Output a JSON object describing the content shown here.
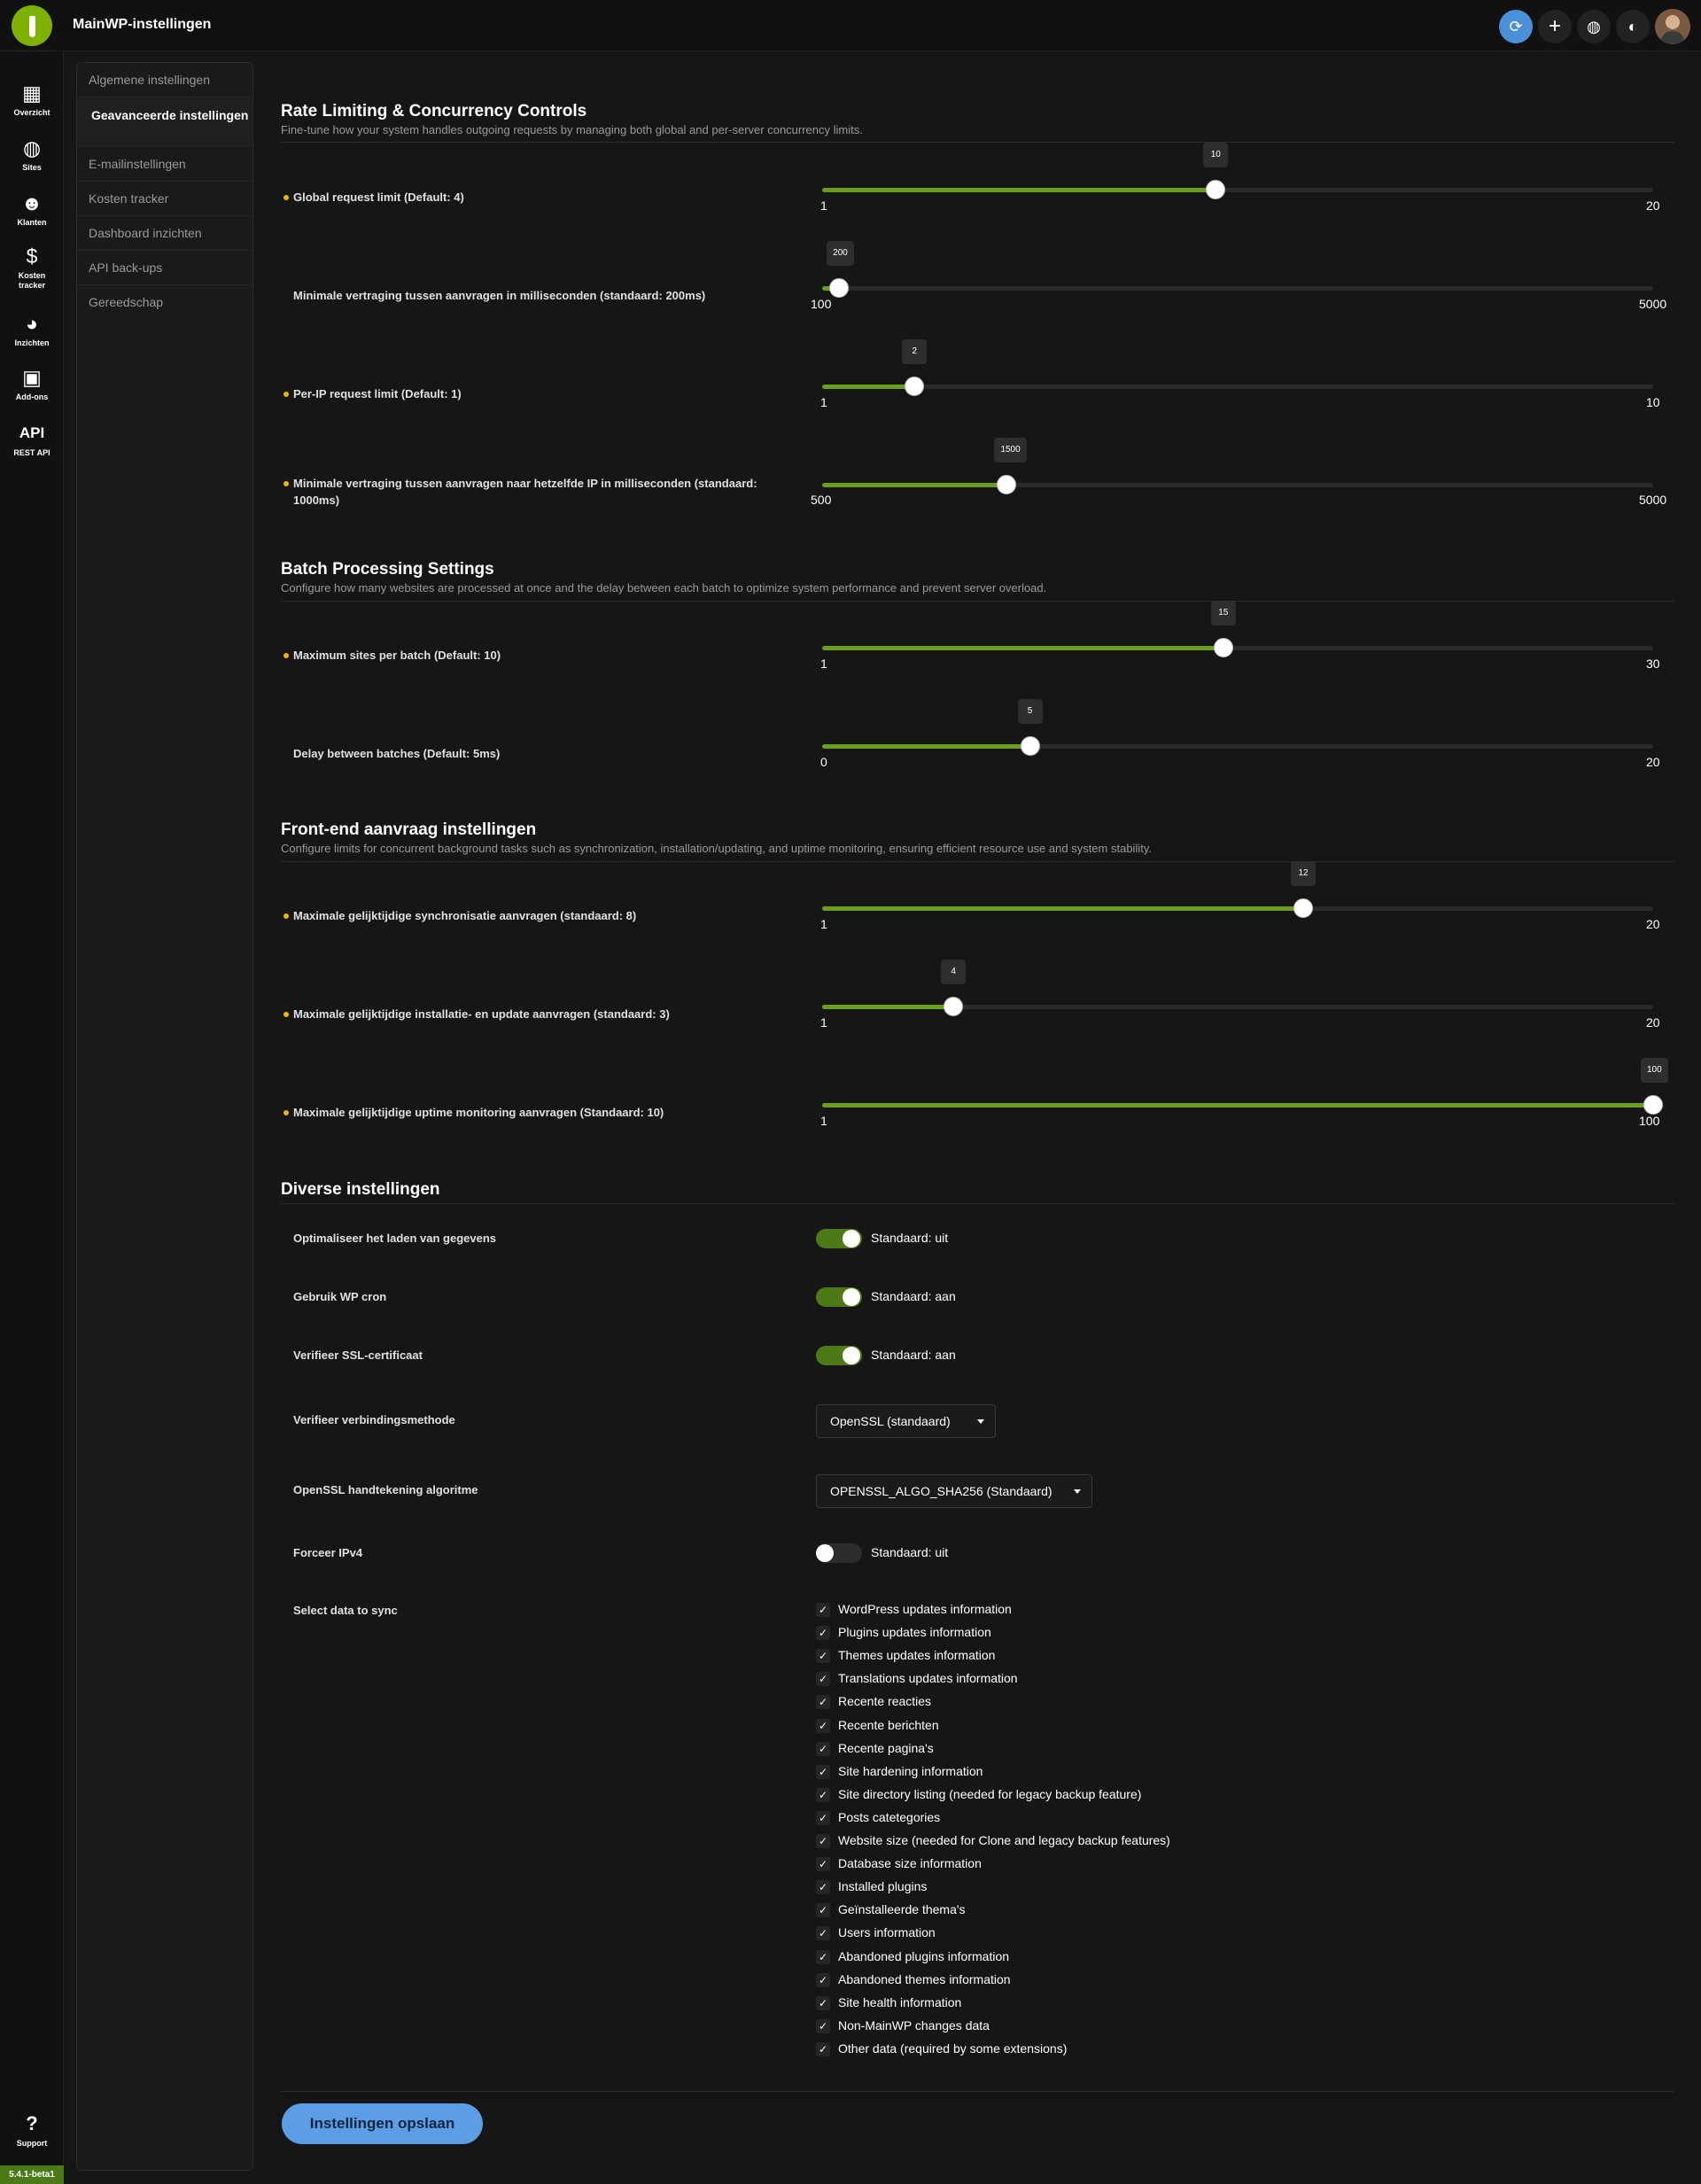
{
  "header": {
    "title": "MainWP-instellingen",
    "actions": [
      {
        "icon": "sync-icon"
      },
      {
        "icon": "plus-icon"
      },
      {
        "icon": "globe-icon"
      },
      {
        "icon": "palette-icon"
      },
      {
        "icon": "user-avatar-icon"
      }
    ]
  },
  "nav": {
    "items": [
      {
        "label": "Overzicht",
        "icon": "grid-icon"
      },
      {
        "label": "Sites",
        "icon": "globe-icon"
      },
      {
        "label": "Klanten",
        "icon": "users-icon"
      },
      {
        "label": "Kosten tracker",
        "icon": "dollar-icon"
      },
      {
        "label": "Inzichten",
        "icon": "pie-chart-icon"
      },
      {
        "label": "Add-ons",
        "icon": "box-icon"
      },
      {
        "label": "REST API",
        "icon": "api-icon",
        "icon_text": "API"
      }
    ],
    "support": {
      "label": "Support",
      "icon": "help-icon",
      "symbol": "?"
    },
    "version": "5.4.1-beta1"
  },
  "submenu": {
    "items": [
      {
        "label": "Algemene instellingen",
        "active": false
      },
      {
        "label": "Geavanceerde instellingen",
        "active": true
      },
      {
        "label": "E-mailinstellingen",
        "active": false
      },
      {
        "label": "Kosten tracker",
        "active": false
      },
      {
        "label": "Dashboard inzichten",
        "active": false
      },
      {
        "label": "API back-ups",
        "active": false
      },
      {
        "label": "Gereedschap",
        "active": false
      }
    ]
  },
  "sections": [
    {
      "title": "Rate Limiting & Concurrency Controls",
      "description": "Fine-tune how your system handles outgoing requests by managing both global and per-server concurrency limits.",
      "sliders": [
        {
          "label": "Global request limit (Default: 4)",
          "highlight": true,
          "min": 1,
          "max": 20,
          "value": 10
        },
        {
          "label": "Minimale vertraging tussen aanvragen in milliseconden (standaard: 200ms)",
          "highlight": false,
          "min": 100,
          "max": 5000,
          "value": 200
        },
        {
          "label": "Per-IP request limit (Default: 1)",
          "highlight": true,
          "min": 1,
          "max": 10,
          "value": 2
        },
        {
          "label": "Minimale vertraging tussen aanvragen naar hetzelfde IP in milliseconden (standaard: 1000ms)",
          "highlight": true,
          "min": 500,
          "max": 5000,
          "value": 1500
        }
      ]
    },
    {
      "title": "Batch Processing Settings",
      "description": "Configure how many websites are processed at once and the delay between each batch to optimize system performance and prevent server overload.",
      "sliders": [
        {
          "label": "Maximum sites per batch (Default: 10)",
          "highlight": true,
          "min": 1,
          "max": 30,
          "value": 15
        },
        {
          "label": "Delay between batches (Default: 5ms)",
          "highlight": false,
          "min": 0,
          "max": 20,
          "value": 5
        }
      ]
    },
    {
      "title": "Front-end aanvraag instellingen",
      "description": "Configure limits for concurrent background tasks such as synchronization, installation/updating, and uptime monitoring, ensuring efficient resource use and system stability.",
      "sliders": [
        {
          "label": "Maximale gelijktijdige synchronisatie aanvragen (standaard: 8)",
          "highlight": true,
          "min": 1,
          "max": 20,
          "value": 12
        },
        {
          "label": "Maximale gelijktijdige installatie- en update aanvragen (standaard: 3)",
          "highlight": true,
          "min": 1,
          "max": 20,
          "value": 4
        },
        {
          "label": "Maximale gelijktijdige uptime monitoring aanvragen (Standaard: 10)",
          "highlight": true,
          "min": 1,
          "max": 100,
          "value": 100
        }
      ]
    }
  ],
  "misc": {
    "title": "Diverse instellingen",
    "toggles": [
      {
        "label": "Optimaliseer het laden van gegevens",
        "on": true,
        "text": "Standaard: uit"
      },
      {
        "label": "Gebruik WP cron",
        "on": true,
        "text": "Standaard: aan"
      },
      {
        "label": "Verifieer SSL-certificaat",
        "on": true,
        "text": "Standaard: aan"
      }
    ],
    "verify_method": {
      "label": "Verifieer verbindingsmethode",
      "value": "OpenSSL (standaard)"
    },
    "signature_algorithm": {
      "label": "OpenSSL handtekening algoritme",
      "value": "OPENSSL_ALGO_SHA256 (Standaard)"
    },
    "force_ipv4": {
      "label": "Forceer IPv4",
      "on": false,
      "text": "Standaard: uit"
    },
    "sync_data": {
      "label": "Select data to sync",
      "options": [
        "WordPress updates information",
        "Plugins updates information",
        "Themes updates information",
        "Translations updates information",
        "Recente reacties",
        "Recente berichten",
        "Recente pagina's",
        "Site hardening information",
        "Site directory listing (needed for legacy backup feature)",
        "Posts catetegories",
        "Website size (needed for Clone and legacy backup features)",
        "Database size information",
        "Installed plugins",
        "Geïnstalleerde thema's",
        "Users information",
        "Abandoned plugins information",
        "Abandoned themes information",
        "Site health information",
        "Non-MainWP changes data",
        "Other data (required by some extensions)"
      ]
    }
  },
  "save_button": "Instellingen opslaan"
}
